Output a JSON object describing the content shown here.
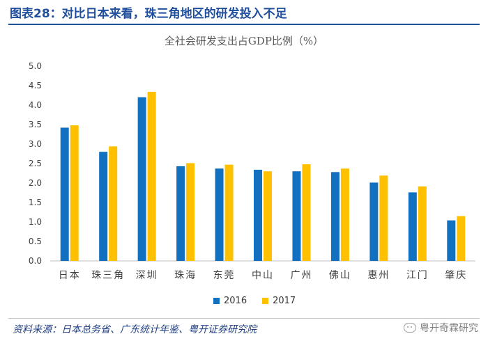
{
  "header": {
    "figure_title": "图表28：对比日本来看，珠三角地区的研发投入不足",
    "source": "资料来源：日本总务省、广东统计年鉴、粤开证券研究院",
    "watermark": "粤开奇霖研究"
  },
  "colors": {
    "series_2016": "#1270c0",
    "series_2017": "#ffc000",
    "title_blue": "#1f4e9c"
  },
  "chart_data": {
    "type": "bar",
    "title": "全社会研发支出占GDP比例（%）",
    "xlabel": "",
    "ylabel": "",
    "ylim": [
      0,
      5
    ],
    "yticks": [
      "0.0",
      "0.5",
      "1.0",
      "1.5",
      "2.0",
      "2.5",
      "3.0",
      "3.5",
      "4.0",
      "4.5",
      "5.0"
    ],
    "grid": false,
    "legend_position": "bottom",
    "categories": [
      "日本",
      "珠三角",
      "深圳",
      "珠海",
      "东莞",
      "中山",
      "广州",
      "佛山",
      "惠州",
      "江门",
      "肇庆"
    ],
    "series": [
      {
        "name": "2016",
        "values": [
          3.42,
          2.8,
          4.2,
          2.43,
          2.37,
          2.34,
          2.3,
          2.28,
          2.01,
          1.76,
          1.04
        ]
      },
      {
        "name": "2017",
        "values": [
          3.48,
          2.94,
          4.34,
          2.51,
          2.47,
          2.3,
          2.48,
          2.37,
          2.19,
          1.91,
          1.15
        ]
      }
    ]
  }
}
